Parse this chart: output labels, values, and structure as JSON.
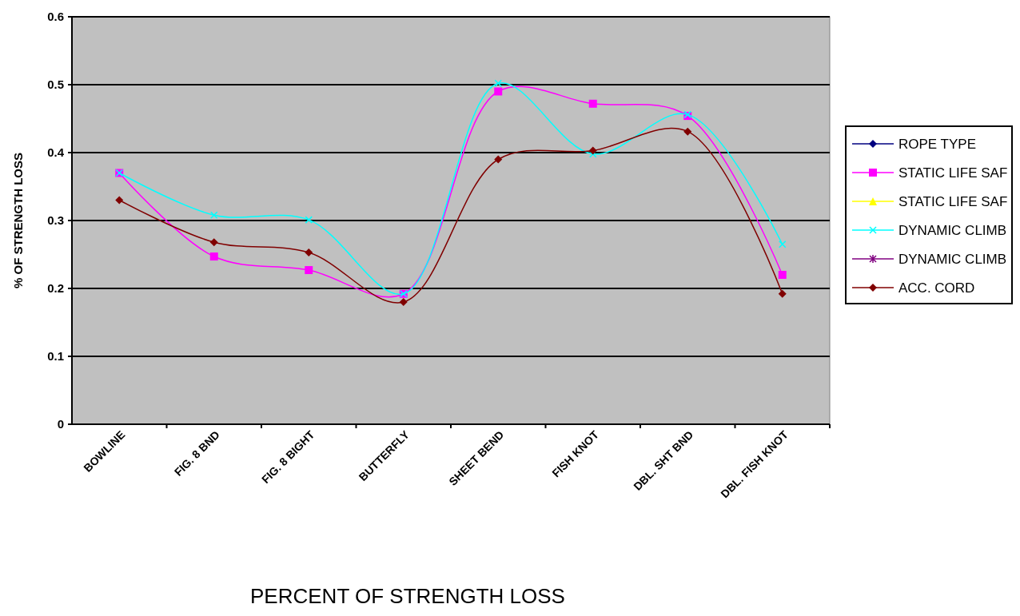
{
  "chart_data": {
    "type": "line",
    "xlabel": "PERCENT OF STRENGTH LOSS",
    "ylabel": "% OF STRENGTH LOSS",
    "categories": [
      "BOWLINE",
      "FIG. 8 BND",
      "FIG. 8 BIGHT",
      "BUTTERFLY",
      "SHEET BEND",
      "FISH KNOT",
      "DBL. SHT BND",
      "DBL. FISH KNOT"
    ],
    "series": [
      {
        "name": "ROPE TYPE",
        "color": "#000080",
        "marker": "diamond",
        "values": [
          null,
          null,
          null,
          null,
          null,
          null,
          null,
          null
        ]
      },
      {
        "name": "STATIC LIFE SAF",
        "color": "#ff00ff",
        "marker": "square",
        "values": [
          0.37,
          0.247,
          0.227,
          0.192,
          0.49,
          0.472,
          0.454,
          0.22
        ]
      },
      {
        "name": "STATIC LIFE SAF",
        "color": "#ffff00",
        "marker": "triangle",
        "values": [
          null,
          null,
          null,
          null,
          null,
          null,
          null,
          null
        ]
      },
      {
        "name": "DYNAMIC CLIMB",
        "color": "#00ffff",
        "marker": "cross",
        "values": [
          0.37,
          0.308,
          0.301,
          0.192,
          0.502,
          0.398,
          0.456,
          0.265
        ]
      },
      {
        "name": "DYNAMIC CLIMB",
        "color": "#800080",
        "marker": "star",
        "values": [
          null,
          null,
          null,
          null,
          null,
          null,
          null,
          null
        ]
      },
      {
        "name": "ACC. CORD",
        "color": "#800000",
        "marker": "diamond",
        "values": [
          0.33,
          0.268,
          0.253,
          0.18,
          0.39,
          0.403,
          0.431,
          0.192
        ]
      }
    ],
    "ylim": [
      0,
      0.6
    ],
    "yticks": [
      0,
      0.1,
      0.2,
      0.3,
      0.4,
      0.5,
      0.6
    ],
    "grid": "y",
    "legend": "right"
  }
}
